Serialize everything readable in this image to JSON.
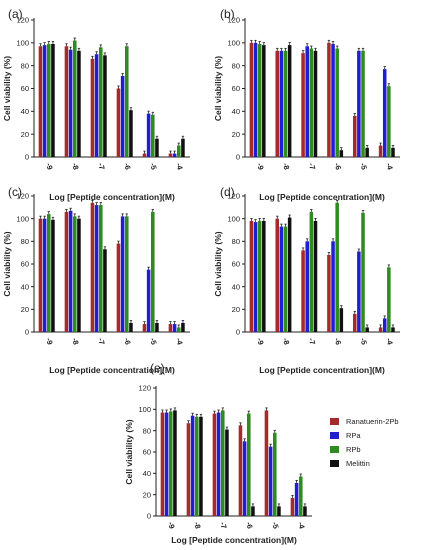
{
  "colors": {
    "Ranatuerin-2Pb": "#a52a2a",
    "RPa": "#1f1fcf",
    "RPb": "#2e8b1f",
    "Melittin": "#111111"
  },
  "chart_data": [
    {
      "panel": "(a)",
      "type": "bar",
      "categories": [
        "-9",
        "-8",
        "-7",
        "-6",
        "-5",
        "-4"
      ],
      "xlabel": "Log [Peptide concentration](M)",
      "ylabel": "Cell viability (%)",
      "ylim": [
        0,
        120
      ],
      "yticks": [
        0,
        20,
        40,
        60,
        80,
        100,
        120
      ],
      "series": [
        {
          "name": "Ranatuerin-2Pb",
          "values": [
            97,
            97,
            86,
            60,
            3,
            3
          ]
        },
        {
          "name": "RPa",
          "values": [
            98,
            94,
            90,
            71,
            38,
            3
          ]
        },
        {
          "name": "RPb",
          "values": [
            99,
            102,
            96,
            97,
            37,
            10
          ]
        },
        {
          "name": "Melittin",
          "values": [
            99,
            93,
            89,
            41,
            16,
            16
          ]
        }
      ]
    },
    {
      "panel": "(b)",
      "type": "bar",
      "categories": [
        "-9",
        "-8",
        "-7",
        "-6",
        "-5",
        "-4"
      ],
      "xlabel": "Log [Peptide concentration](M)",
      "ylabel": "Cell viability (%)",
      "ylim": [
        0,
        120
      ],
      "yticks": [
        0,
        20,
        40,
        60,
        80,
        100,
        120
      ],
      "series": [
        {
          "name": "Ranatuerin-2Pb",
          "values": [
            100,
            93,
            91,
            100,
            36,
            10
          ]
        },
        {
          "name": "RPa",
          "values": [
            100,
            93,
            97,
            99,
            93,
            77
          ]
        },
        {
          "name": "RPb",
          "values": [
            99,
            93,
            95,
            95,
            93,
            62
          ]
        },
        {
          "name": "Melittin",
          "values": [
            98,
            98,
            93,
            6,
            8,
            8
          ]
        }
      ]
    },
    {
      "panel": "(c)",
      "type": "bar",
      "categories": [
        "-9",
        "-8",
        "-7",
        "-6",
        "-5",
        "-4"
      ],
      "xlabel": "Log [Peptide concentration](M)",
      "ylabel": "Cell viability (%)",
      "ylim": [
        0,
        120
      ],
      "yticks": [
        0,
        20,
        40,
        60,
        80,
        100,
        120
      ],
      "series": [
        {
          "name": "Ranatuerin-2Pb",
          "values": [
            100,
            106,
            114,
            78,
            7,
            7
          ]
        },
        {
          "name": "RPa",
          "values": [
            100,
            107,
            112,
            102,
            55,
            7
          ]
        },
        {
          "name": "RPb",
          "values": [
            104,
            102,
            112,
            102,
            106,
            4
          ]
        },
        {
          "name": "Melittin",
          "values": [
            99,
            100,
            73,
            8,
            8,
            8
          ]
        }
      ]
    },
    {
      "panel": "(d)",
      "type": "bar",
      "categories": [
        "-9",
        "-8",
        "-7",
        "-6",
        "-5",
        "-4"
      ],
      "xlabel": "Log [Peptide concentration](M)",
      "ylabel": "Cell viability (%)",
      "ylim": [
        0,
        120
      ],
      "yticks": [
        0,
        20,
        40,
        60,
        80,
        100,
        120
      ],
      "series": [
        {
          "name": "Ranatuerin-2Pb",
          "values": [
            98,
            100,
            72,
            68,
            16,
            4
          ]
        },
        {
          "name": "RPa",
          "values": [
            97,
            93,
            80,
            80,
            71,
            12
          ]
        },
        {
          "name": "RPb",
          "values": [
            98,
            93,
            106,
            114,
            105,
            57
          ]
        },
        {
          "name": "Melittin",
          "values": [
            98,
            101,
            98,
            21,
            4,
            4
          ]
        }
      ]
    },
    {
      "panel": "(e)",
      "type": "bar",
      "categories": [
        "-9",
        "-8",
        "-7",
        "-6",
        "-5",
        "-4"
      ],
      "xlabel": "Log [Peptide concentration](M)",
      "ylabel": "Cell viability (%)",
      "ylim": [
        0,
        120
      ],
      "yticks": [
        0,
        20,
        40,
        60,
        80,
        100,
        120
      ],
      "legend": [
        "Ranatuerin-2Pb",
        "RPa",
        "RPb",
        "Melittin"
      ],
      "legend_position": "right",
      "series": [
        {
          "name": "Ranatuerin-2Pb",
          "values": [
            97,
            87,
            96,
            85,
            99,
            17
          ]
        },
        {
          "name": "RPa",
          "values": [
            97,
            94,
            97,
            70,
            65,
            31
          ]
        },
        {
          "name": "RPb",
          "values": [
            98,
            93,
            99,
            96,
            78,
            37
          ]
        },
        {
          "name": "Melittin",
          "values": [
            99,
            93,
            81,
            9,
            9,
            9
          ]
        }
      ]
    }
  ]
}
